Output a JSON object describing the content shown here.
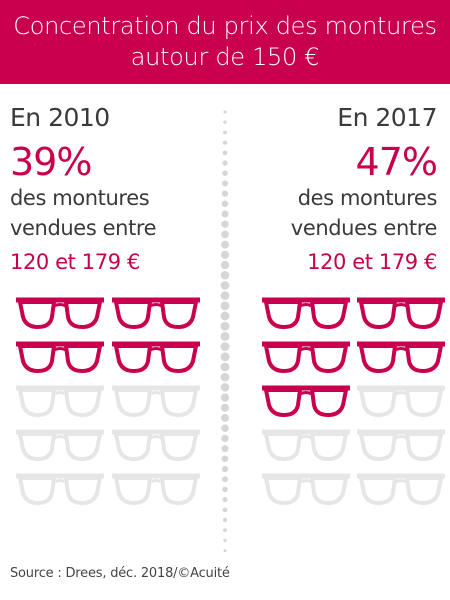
{
  "header": {
    "title_line1": "Concentration du prix des montures",
    "title_line2": "autour de 150 €"
  },
  "colors": {
    "accent": "#c8004e",
    "accent_dark": "#9e1749",
    "inactive": "#e6e6e6",
    "divider": "#d6d6d6",
    "text": "#3a3a3a"
  },
  "chart_data": {
    "type": "pictogram",
    "icon": "glasses-icon",
    "icons_per_panel": 10,
    "panels": [
      {
        "year_label": "En 2010",
        "percent_label": "39%",
        "value": 39,
        "filled_icons": 4,
        "desc_line1": "des montures",
        "desc_line2": "vendues entre",
        "range_label": "120 et 179 €"
      },
      {
        "year_label": "En 2017",
        "percent_label": "47%",
        "value": 47,
        "filled_icons": 5,
        "desc_line1": "des montures",
        "desc_line2": "vendues entre",
        "range_label": "120 et 179 €"
      }
    ]
  },
  "footer": {
    "source": "Source : Drees, déc. 2018/©Acuité"
  }
}
